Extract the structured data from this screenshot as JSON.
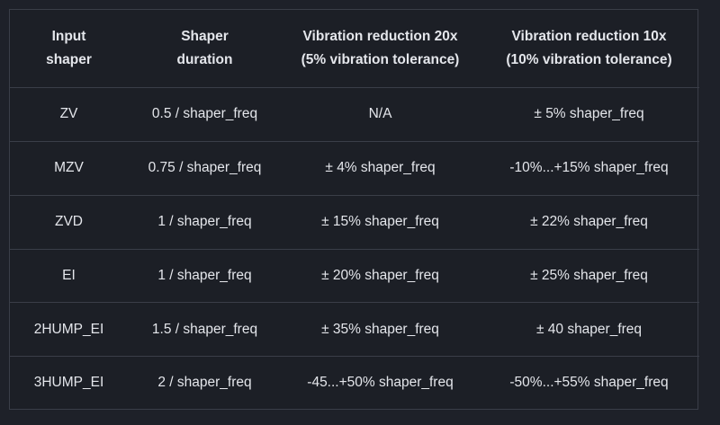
{
  "table": {
    "headers": [
      {
        "line1": "Input",
        "line2": "shaper"
      },
      {
        "line1": "Shaper",
        "line2": "duration"
      },
      {
        "line1": "Vibration reduction 20x",
        "line2": "(5% vibration tolerance)"
      },
      {
        "line1": "Vibration reduction 10x",
        "line2": "(10% vibration tolerance)"
      }
    ],
    "rows": [
      [
        "ZV",
        "0.5 / shaper_freq",
        "N/A",
        "± 5% shaper_freq"
      ],
      [
        "MZV",
        "0.75 / shaper_freq",
        "± 4% shaper_freq",
        "-10%...+15% shaper_freq"
      ],
      [
        "ZVD",
        "1 / shaper_freq",
        "± 15% shaper_freq",
        "± 22% shaper_freq"
      ],
      [
        "EI",
        "1 / shaper_freq",
        "± 20% shaper_freq",
        "± 25% shaper_freq"
      ],
      [
        "2HUMP_EI",
        "1.5 / shaper_freq",
        "± 35% shaper_freq",
        "± 40 shaper_freq"
      ],
      [
        "3HUMP_EI",
        "2 / shaper_freq",
        "-45...+50% shaper_freq",
        "-50%...+55% shaper_freq"
      ]
    ]
  }
}
